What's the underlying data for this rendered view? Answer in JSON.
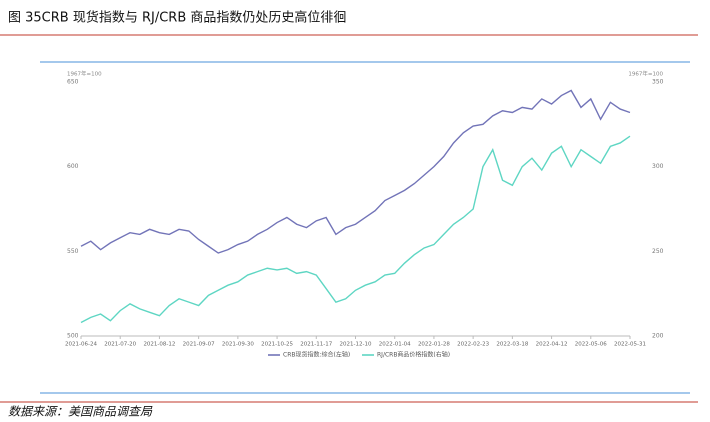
{
  "chart_data": {
    "type": "line",
    "title": "图 35CRB 现货指数与 RJ/CRB 商品指数仍处历史高位徘徊",
    "source": "数据来源：美国商品调查局",
    "y_label": "1967年=100",
    "y2_label": "1967年=100",
    "categories": [
      "2021-06-24",
      null,
      null,
      null,
      "2021-07-20",
      null,
      null,
      null,
      "2021-08-12",
      null,
      null,
      null,
      "2021-09-07",
      null,
      null,
      null,
      "2021-09-30",
      null,
      null,
      null,
      "2021-10-25",
      null,
      null,
      null,
      "2021-11-17",
      null,
      null,
      null,
      "2021-12-10",
      null,
      null,
      null,
      "2022-01-04",
      null,
      null,
      null,
      "2022-01-28",
      null,
      null,
      null,
      "2022-02-23",
      null,
      null,
      null,
      "2022-03-18",
      null,
      null,
      null,
      "2022-04-12",
      null,
      null,
      null,
      "2022-05-06",
      null,
      null,
      null,
      "2022-05-31"
    ],
    "series": [
      {
        "name": "CRB现货指数:综合(左轴)",
        "color": "#7274b8",
        "values": [
          553,
          556,
          551,
          555,
          558,
          561,
          560,
          563,
          561,
          560,
          563,
          562,
          557,
          553,
          549,
          551,
          554,
          556,
          560,
          563,
          567,
          570,
          566,
          564,
          568,
          570,
          560,
          564,
          566,
          570,
          574,
          580,
          583,
          586,
          590,
          595,
          600,
          606,
          614,
          620,
          624,
          625,
          630,
          633,
          632,
          635,
          634,
          640,
          637,
          642,
          645,
          635,
          640,
          628,
          638,
          634,
          632
        ]
      },
      {
        "name": "RJ/CRB商品价格指数(右轴)",
        "color": "#5ed6c3",
        "axis": "y2",
        "values": [
          208,
          211,
          213,
          209,
          215,
          219,
          216,
          214,
          212,
          218,
          222,
          220,
          218,
          224,
          227,
          230,
          232,
          236,
          238,
          240,
          239,
          240,
          237,
          238,
          236,
          228,
          220,
          222,
          227,
          230,
          232,
          236,
          237,
          243,
          248,
          252,
          254,
          260,
          266,
          270,
          275,
          300,
          310,
          292,
          289,
          300,
          305,
          298,
          308,
          312,
          300,
          310,
          306,
          302,
          312,
          314,
          318
        ]
      }
    ],
    "ylim": [
      500,
      650
    ],
    "yticks": [
      500,
      550,
      600,
      650
    ],
    "y2lim": [
      200,
      350
    ],
    "y2ticks": [
      200,
      250,
      300,
      350
    ],
    "grid": false,
    "legend": "bottom"
  }
}
